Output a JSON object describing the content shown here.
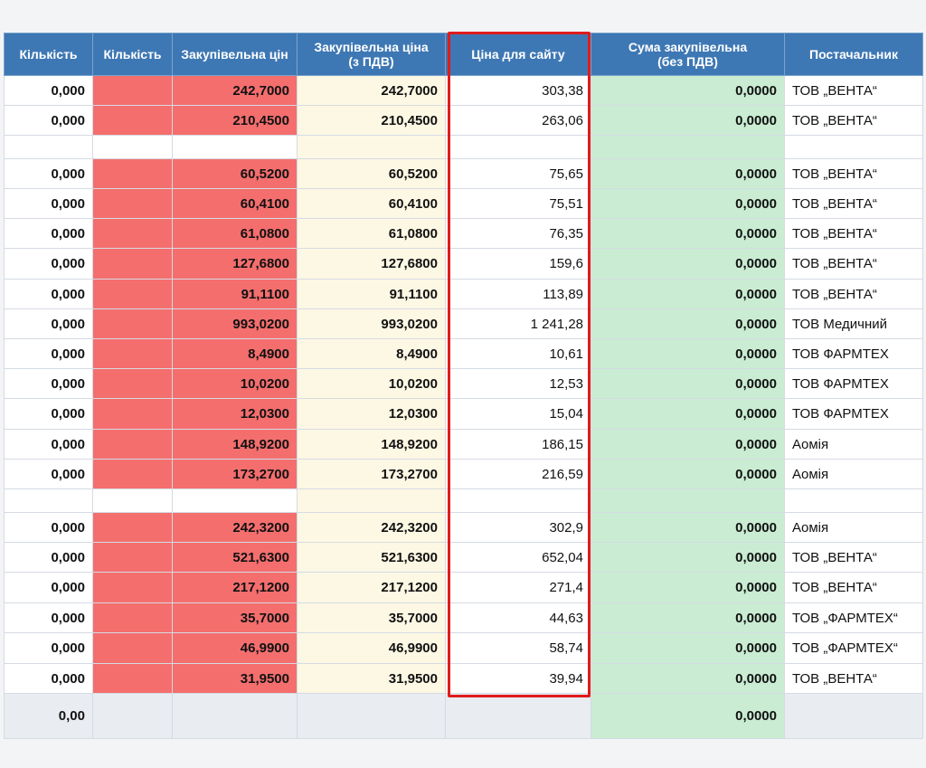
{
  "headers": {
    "qty1": "Кількість",
    "qty2": "Кількість",
    "purchase": "Закупівельна цін",
    "purchase_vat_l1": "Закупівельна ціна",
    "purchase_vat_l2": "(з ПДВ)",
    "site_price": "Ціна для сайту",
    "sum_l1": "Сума закупівельна",
    "sum_l2": "(без ПДВ)",
    "supplier": "Постачальник"
  },
  "rows": [
    {
      "qty": "0,000",
      "purchase": "242,7000",
      "purchase_vat": "242,7000",
      "site_price": "303,38",
      "sum": "0,0000",
      "supplier": "ТОВ „ВЕНТА“"
    },
    {
      "qty": "0,000",
      "purchase": "210,4500",
      "purchase_vat": "210,4500",
      "site_price": "263,06",
      "sum": "0,0000",
      "supplier": "ТОВ „ВЕНТА“"
    },
    {
      "blank": true
    },
    {
      "qty": "0,000",
      "purchase": "60,5200",
      "purchase_vat": "60,5200",
      "site_price": "75,65",
      "sum": "0,0000",
      "supplier": "ТОВ „ВЕНТА“"
    },
    {
      "qty": "0,000",
      "purchase": "60,4100",
      "purchase_vat": "60,4100",
      "site_price": "75,51",
      "sum": "0,0000",
      "supplier": "ТОВ „ВЕНТА“"
    },
    {
      "qty": "0,000",
      "purchase": "61,0800",
      "purchase_vat": "61,0800",
      "site_price": "76,35",
      "sum": "0,0000",
      "supplier": "ТОВ „ВЕНТА“"
    },
    {
      "qty": "0,000",
      "purchase": "127,6800",
      "purchase_vat": "127,6800",
      "site_price": "159,6",
      "sum": "0,0000",
      "supplier": "ТОВ „ВЕНТА“"
    },
    {
      "qty": "0,000",
      "purchase": "91,1100",
      "purchase_vat": "91,1100",
      "site_price": "113,89",
      "sum": "0,0000",
      "supplier": "ТОВ „ВЕНТА“"
    },
    {
      "qty": "0,000",
      "purchase": "993,0200",
      "purchase_vat": "993,0200",
      "site_price": "1 241,28",
      "sum": "0,0000",
      "supplier": "ТОВ Медичний"
    },
    {
      "qty": "0,000",
      "purchase": "8,4900",
      "purchase_vat": "8,4900",
      "site_price": "10,61",
      "sum": "0,0000",
      "supplier": "ТОВ ФАРМТЕХ"
    },
    {
      "qty": "0,000",
      "purchase": "10,0200",
      "purchase_vat": "10,0200",
      "site_price": "12,53",
      "sum": "0,0000",
      "supplier": "ТОВ ФАРМТЕХ"
    },
    {
      "qty": "0,000",
      "purchase": "12,0300",
      "purchase_vat": "12,0300",
      "site_price": "15,04",
      "sum": "0,0000",
      "supplier": "ТОВ ФАРМТЕХ"
    },
    {
      "qty": "0,000",
      "purchase": "148,9200",
      "purchase_vat": "148,9200",
      "site_price": "186,15",
      "sum": "0,0000",
      "supplier": "Аомія"
    },
    {
      "qty": "0,000",
      "purchase": "173,2700",
      "purchase_vat": "173,2700",
      "site_price": "216,59",
      "sum": "0,0000",
      "supplier": "Аомія"
    },
    {
      "blank": true
    },
    {
      "qty": "0,000",
      "purchase": "242,3200",
      "purchase_vat": "242,3200",
      "site_price": "302,9",
      "sum": "0,0000",
      "supplier": "Аомія"
    },
    {
      "qty": "0,000",
      "purchase": "521,6300",
      "purchase_vat": "521,6300",
      "site_price": "652,04",
      "sum": "0,0000",
      "supplier": "ТОВ „ВЕНТА“"
    },
    {
      "qty": "0,000",
      "purchase": "217,1200",
      "purchase_vat": "217,1200",
      "site_price": "271,4",
      "sum": "0,0000",
      "supplier": "ТОВ „ВЕНТА“"
    },
    {
      "qty": "0,000",
      "purchase": "35,7000",
      "purchase_vat": "35,7000",
      "site_price": "44,63",
      "sum": "0,0000",
      "supplier": "ТОВ „ФАРМТЕХ“"
    },
    {
      "qty": "0,000",
      "purchase": "46,9900",
      "purchase_vat": "46,9900",
      "site_price": "58,74",
      "sum": "0,0000",
      "supplier": "ТОВ „ФАРМТЕХ“"
    },
    {
      "qty": "0,000",
      "purchase": "31,9500",
      "purchase_vat": "31,9500",
      "site_price": "39,94",
      "sum": "0,0000",
      "supplier": "ТОВ „ВЕНТА“"
    }
  ],
  "footer": {
    "qty_total": "0,00",
    "sum_total": "0,0000"
  },
  "colors": {
    "header_bg": "#3e78b4",
    "purchase_fill": "#f46e6e",
    "purchase_vat_fill": "#fdf8e4",
    "sum_fill": "#c9ecd2",
    "highlight": "#e01b1b"
  }
}
